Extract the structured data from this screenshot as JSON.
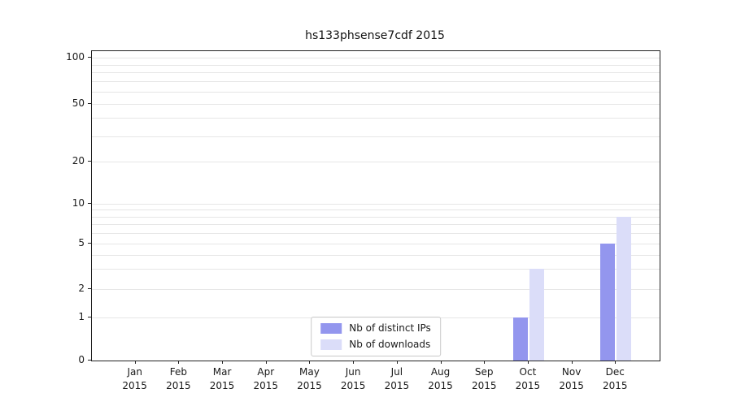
{
  "chart_data": {
    "type": "bar",
    "title": "hs133phsense7cdf 2015",
    "categories": [
      "Jan 2015",
      "Feb 2015",
      "Mar 2015",
      "Apr 2015",
      "May 2015",
      "Jun 2015",
      "Jul 2015",
      "Aug 2015",
      "Sep 2015",
      "Oct 2015",
      "Nov 2015",
      "Dec 2015"
    ],
    "series": [
      {
        "name": "Nb of distinct IPs",
        "color": "#9396ee",
        "values": [
          0,
          0,
          0,
          0,
          0,
          0,
          0,
          0,
          0,
          1,
          0,
          5
        ]
      },
      {
        "name": "Nb of downloads",
        "color": "#dbddf9",
        "values": [
          0,
          0,
          0,
          0,
          0,
          0,
          0,
          0,
          0,
          3,
          0,
          8
        ]
      }
    ],
    "xlabel": "",
    "ylabel": "",
    "yscale": "symlog",
    "yticks": [
      0,
      1,
      2,
      5,
      10,
      20,
      50,
      100
    ],
    "minor_gridlines": [
      3,
      4,
      6,
      7,
      8,
      9,
      30,
      40,
      60,
      70,
      80,
      90
    ],
    "ylim": [
      0,
      118
    ],
    "grid": true,
    "legend_position": "lower center"
  },
  "colors": {
    "grid": "#e6e6e6",
    "axis": "#222222",
    "background": "#ffffff"
  }
}
